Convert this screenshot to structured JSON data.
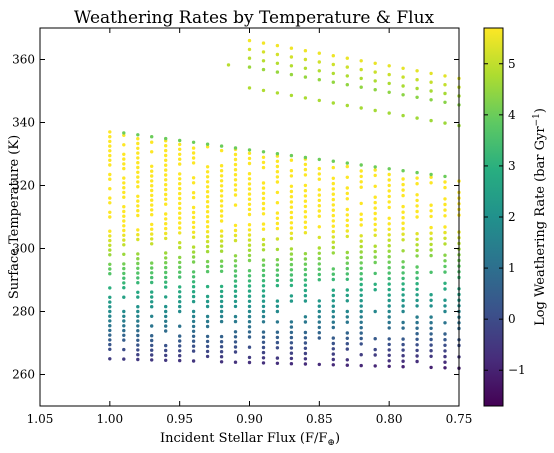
{
  "chart_data": {
    "type": "scatter",
    "title": "Weathering Rates by Temperature & Flux",
    "xlabel": "Incident Stellar Flux (F/F",
    "xlabel_sub": "⊕",
    "xlabel_close": ")",
    "ylabel": "Surface Temperature (K)",
    "colorbar_label_main": "Log Weathering Rate (bar Gyr",
    "colorbar_label_sup": "−1",
    "colorbar_label_close": ")",
    "xlim": [
      1.05,
      0.75
    ],
    "ylim": [
      250,
      370
    ],
    "x_inverted": true,
    "xticks": [
      1.05,
      1.0,
      0.95,
      0.9,
      0.85,
      0.8,
      0.75
    ],
    "xtick_labels": [
      "1.05",
      "1.00",
      "0.95",
      "0.90",
      "0.85",
      "0.80",
      "0.75"
    ],
    "yticks": [
      260,
      280,
      300,
      320,
      340,
      360
    ],
    "ytick_labels": [
      "260",
      "280",
      "300",
      "320",
      "340",
      "360"
    ],
    "colorbar": {
      "colormap": "viridis",
      "range": [
        -1.7,
        5.7
      ],
      "ticks": [
        -1,
        0,
        1,
        2,
        3,
        4,
        5
      ],
      "tick_labels": [
        "−1",
        "0",
        "1",
        "2",
        "3",
        "4",
        "5"
      ]
    },
    "grid": false,
    "flux_columns": [
      1.0,
      0.99,
      0.98,
      0.97,
      0.96,
      0.95,
      0.94,
      0.93,
      0.92,
      0.91,
      0.9,
      0.89,
      0.88,
      0.87,
      0.86,
      0.85,
      0.84,
      0.83,
      0.82,
      0.81,
      0.8,
      0.79,
      0.78,
      0.77,
      0.76,
      0.75
    ],
    "hot_branch_columns": [
      0.9,
      0.89,
      0.88,
      0.87,
      0.86,
      0.85,
      0.84,
      0.83,
      0.82,
      0.81,
      0.8,
      0.79,
      0.78,
      0.77,
      0.76,
      0.75
    ]
  }
}
